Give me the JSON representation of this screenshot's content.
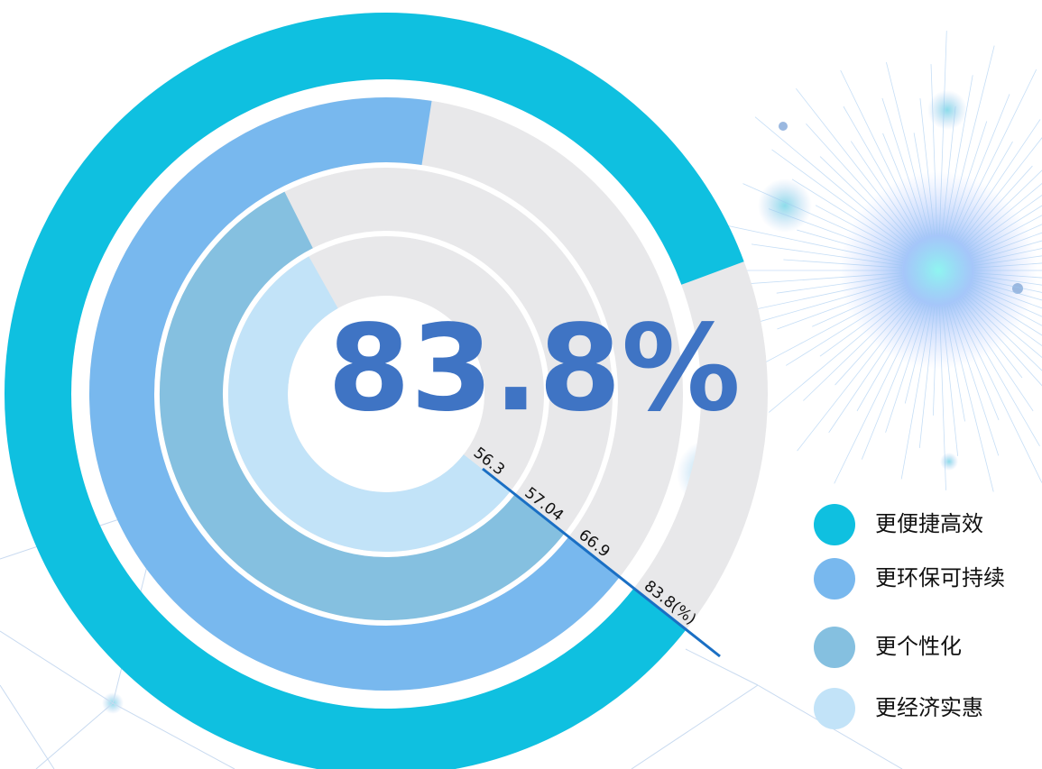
{
  "chart_data": {
    "type": "radial_bar",
    "highlight": "83.8%",
    "categories": [
      "更便捷高效",
      "更环保可持续",
      "更个性化",
      "更经济实惠"
    ],
    "values": [
      83.8,
      66.9,
      57.04,
      56.3
    ],
    "value_labels": [
      "83.8(%)",
      "66.9",
      "57.04",
      "56.3"
    ],
    "colors": [
      "#0fc0e0",
      "#78b8ee",
      "#85c0e0",
      "#c2e3f8"
    ],
    "track_color": "#e8e8ea",
    "ylim": [
      0,
      100
    ]
  }
}
